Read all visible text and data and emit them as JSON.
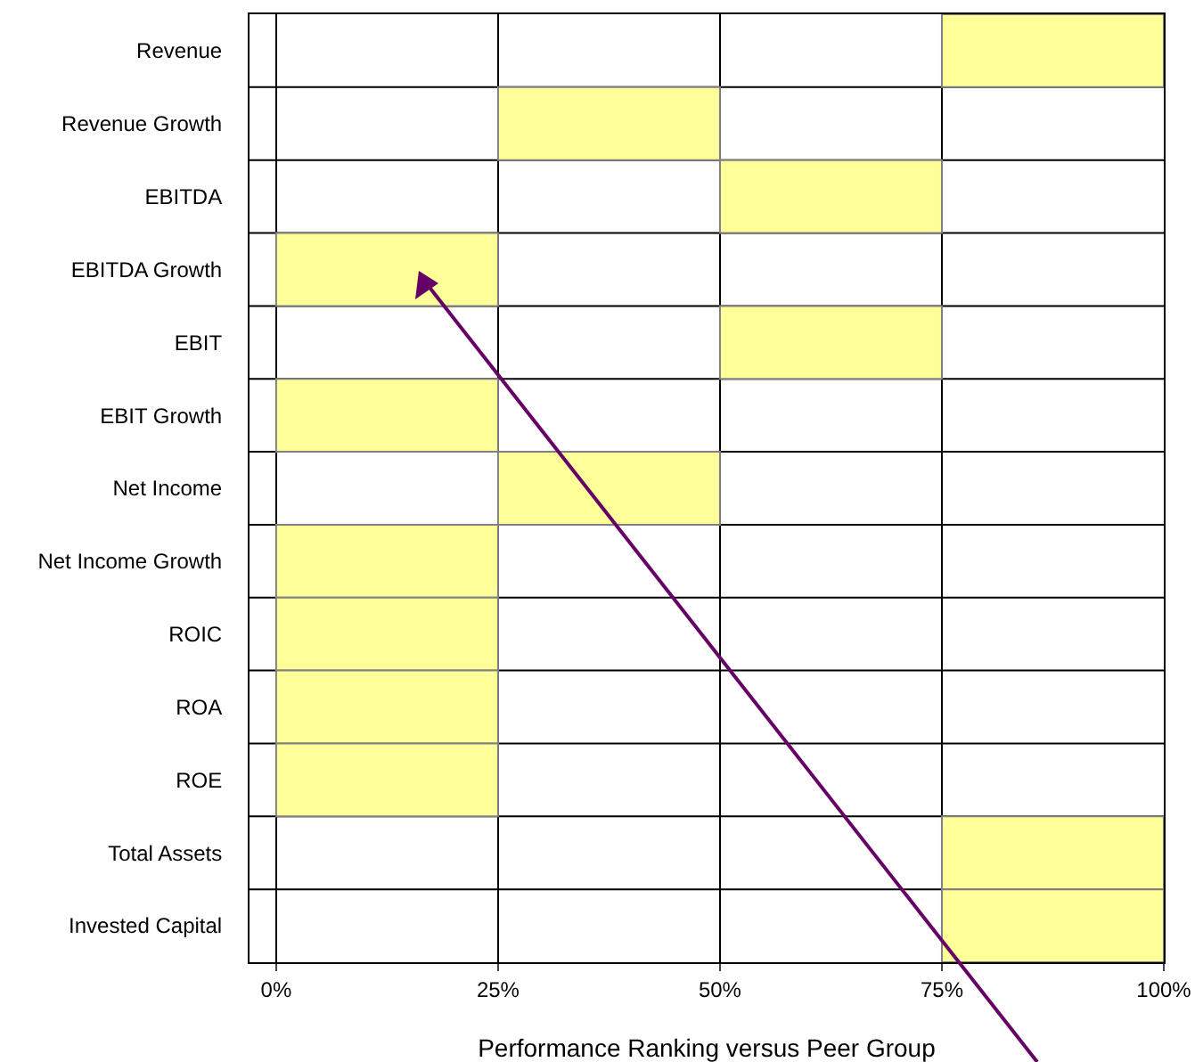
{
  "chart_data": {
    "type": "bar",
    "orientation": "horizontal",
    "xlabel": "Performance Ranking versus Peer Group",
    "categories": [
      "Revenue",
      "Revenue Growth",
      "EBITDA",
      "EBITDA Growth",
      "EBIT",
      "EBIT Growth",
      "Net Income",
      "Net Income Growth",
      "ROIC",
      "ROA",
      "ROE",
      "Total Assets",
      "Invested Capital"
    ],
    "base": [
      75,
      25,
      50,
      0,
      50,
      0,
      25,
      0,
      0,
      0,
      0,
      75,
      75
    ],
    "values": [
      25,
      25,
      25,
      25,
      25,
      25,
      25,
      25,
      25,
      25,
      25,
      25,
      25
    ],
    "color": "#ffff99",
    "xlim": [
      -3,
      100
    ],
    "xticks": [
      {
        "value": 0,
        "label": "0%"
      },
      {
        "value": 25,
        "label": "25%"
      },
      {
        "value": 50,
        "label": "50%"
      },
      {
        "value": 75,
        "label": "75%"
      },
      {
        "value": 100,
        "label": "100%"
      }
    ],
    "grid": true
  }
}
